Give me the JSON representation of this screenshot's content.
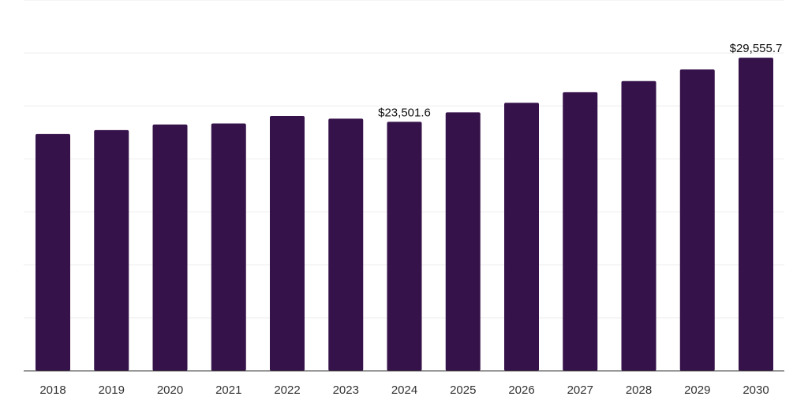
{
  "chart_data": {
    "type": "bar",
    "title": "",
    "xlabel": "",
    "ylabel": "",
    "categories": [
      "2018",
      "2019",
      "2020",
      "2021",
      "2022",
      "2023",
      "2024",
      "2025",
      "2026",
      "2027",
      "2028",
      "2029",
      "2030"
    ],
    "values": [
      22350,
      22720,
      23250,
      23350,
      24050,
      23800,
      23501.6,
      24400,
      25300,
      26300,
      27350,
      28450,
      29555.7
    ],
    "data_labels": [
      {
        "category": "2024",
        "text": "$23,501.6"
      },
      {
        "category": "2030",
        "text": "$29,555.7"
      }
    ],
    "ylim": [
      0,
      35000
    ],
    "grid": true,
    "bar_color": "#36124a",
    "legend": "none"
  }
}
